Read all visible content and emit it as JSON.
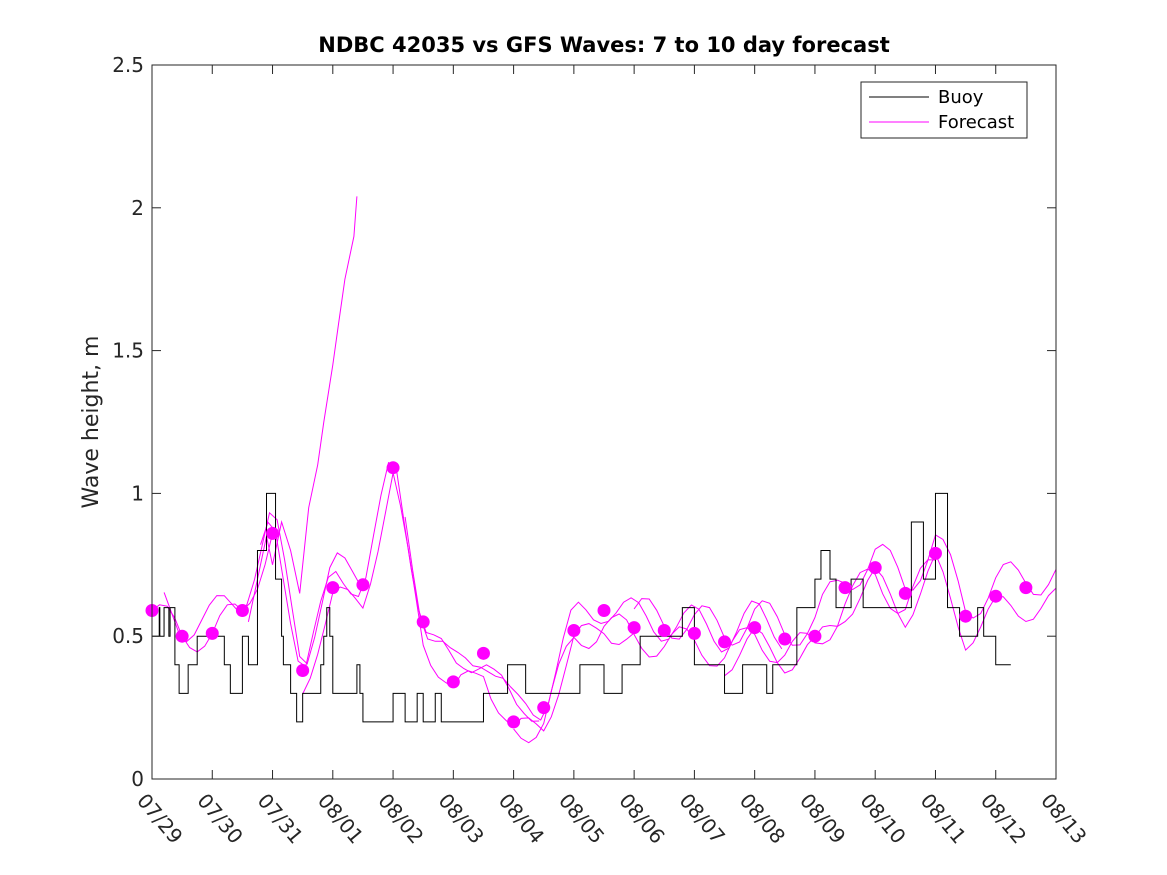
{
  "chart_data": {
    "type": "line",
    "title": "NDBC 42035 vs GFS Waves: 7 to 10 day forecast",
    "xlabel": "",
    "ylabel": "Wave height, m",
    "ylim": [
      0,
      2.5
    ],
    "yticks": [
      "0",
      "0.5",
      "1",
      "1.5",
      "2",
      "2.5"
    ],
    "xlim": [
      "07/29",
      "08/13"
    ],
    "xticks": [
      "07/29",
      "07/30",
      "07/31",
      "08/01",
      "08/02",
      "08/03",
      "08/04",
      "08/05",
      "08/06",
      "08/07",
      "08/08",
      "08/09",
      "08/10",
      "08/11",
      "08/12",
      "08/13"
    ],
    "legend": {
      "position": "top-right",
      "entries": [
        {
          "label": "Buoy",
          "color": "#000000"
        },
        {
          "label": "Forecast",
          "color": "#ff00ff"
        }
      ]
    },
    "series": [
      {
        "name": "Buoy",
        "color": "#000000",
        "style": "step",
        "x": [
          0.0,
          0.12,
          0.13,
          0.2,
          0.28,
          0.3,
          0.38,
          0.45,
          0.55,
          0.6,
          0.75,
          0.77,
          1.18,
          1.2,
          1.3,
          1.45,
          1.5,
          1.6,
          1.75,
          1.9,
          2.05,
          2.15,
          2.18,
          2.3,
          2.35,
          2.4,
          2.5,
          2.6,
          2.7,
          2.8,
          2.85,
          2.9,
          2.95,
          3.0,
          3.05,
          3.15,
          3.3,
          3.4,
          3.45,
          3.5,
          3.8,
          4.0,
          4.2,
          4.4,
          4.5,
          4.7,
          4.8,
          5.0,
          5.5,
          5.9,
          6.2,
          6.6,
          7.1,
          7.5,
          7.8,
          8.1,
          8.4,
          8.6,
          8.8,
          9.0,
          9.2,
          9.5,
          9.8,
          10.0,
          10.1,
          10.2,
          10.3,
          10.5,
          10.7,
          11.0,
          11.1,
          11.25,
          11.35,
          11.45,
          11.5,
          11.6,
          11.8,
          12.0,
          12.2,
          12.4,
          12.6,
          12.8,
          13.0,
          13.2,
          13.4,
          13.5,
          13.6,
          13.7,
          13.8,
          14.0,
          14.1,
          14.2
        ],
        "y": [
          0.5,
          0.6,
          0.5,
          0.6,
          0.5,
          0.6,
          0.4,
          0.3,
          0.3,
          0.4,
          0.5,
          0.5,
          0.5,
          0.4,
          0.3,
          0.3,
          0.5,
          0.4,
          0.8,
          1.0,
          0.7,
          0.5,
          0.4,
          0.3,
          0.3,
          0.2,
          0.3,
          0.3,
          0.3,
          0.4,
          0.5,
          0.6,
          0.5,
          0.3,
          0.3,
          0.3,
          0.3,
          0.4,
          0.3,
          0.2,
          0.2,
          0.3,
          0.2,
          0.3,
          0.2,
          0.3,
          0.2,
          0.2,
          0.3,
          0.4,
          0.3,
          0.3,
          0.4,
          0.3,
          0.4,
          0.5,
          0.5,
          0.5,
          0.6,
          0.4,
          0.4,
          0.3,
          0.4,
          0.4,
          0.4,
          0.3,
          0.4,
          0.4,
          0.6,
          0.7,
          0.8,
          0.7,
          0.6,
          0.6,
          0.6,
          0.7,
          0.6,
          0.6,
          0.6,
          0.6,
          0.9,
          0.7,
          1.0,
          0.6,
          0.5,
          0.5,
          0.5,
          0.6,
          0.5,
          0.4,
          0.4,
          0.4
        ]
      },
      {
        "name": "Forecast",
        "color": "#ff00ff",
        "x": [
          0.0,
          0.5,
          1.0,
          1.5,
          2.0,
          2.5,
          3.0,
          3.5,
          4.0,
          4.5,
          5.0,
          5.5,
          6.0,
          6.5,
          7.0,
          7.5,
          8.0,
          8.5,
          9.0,
          9.5,
          10.0,
          10.5,
          11.0,
          11.5,
          12.0,
          12.5,
          13.0,
          13.5,
          14.0,
          14.5
        ],
        "y": [
          0.59,
          0.5,
          0.51,
          0.59,
          0.86,
          0.38,
          0.67,
          0.68,
          1.09,
          0.55,
          0.34,
          0.44,
          0.2,
          0.25,
          0.52,
          0.59,
          0.53,
          0.52,
          0.51,
          0.48,
          0.53,
          0.49,
          0.5,
          0.67,
          0.74,
          0.65,
          0.79,
          0.57,
          0.64,
          0.67
        ]
      }
    ]
  }
}
